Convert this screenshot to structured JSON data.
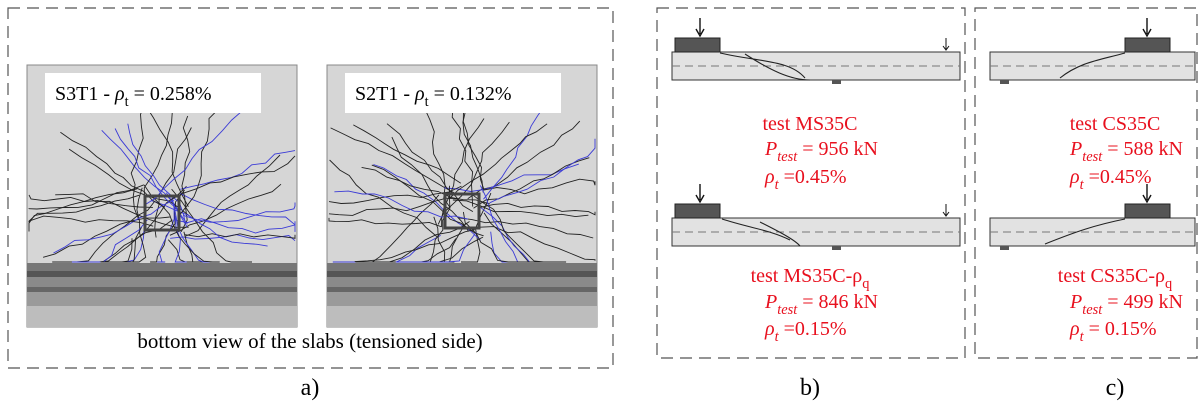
{
  "panel_a": {
    "photos": [
      {
        "label": {
          "text": "S3T1 - ",
          "symbol": "ρ",
          "sub": "t",
          "rest": " = 0.258%"
        }
      },
      {
        "label": {
          "text": "S2T1 - ",
          "symbol": "ρ",
          "sub": "t",
          "rest": " = 0.132%"
        }
      }
    ],
    "caption": "bottom view of the slabs (tensioned side)",
    "tag": "a)"
  },
  "panel_b": {
    "tests": [
      {
        "name": {
          "text": "test MS35C"
        },
        "load": {
          "symbol": "P",
          "sub": "test",
          "rest": " = 956 kN"
        },
        "ratio": {
          "symbol": "ρ",
          "sub": "t",
          "rest": " =0.45%"
        }
      },
      {
        "name": {
          "text": "test MS35C-ρ",
          "sub": "q"
        },
        "load": {
          "symbol": "P",
          "sub": "test",
          "rest": " = 846 kN"
        },
        "ratio": {
          "symbol": "ρ",
          "sub": "t",
          "rest": " =0.15%"
        }
      }
    ],
    "tag": "b)"
  },
  "panel_c": {
    "tests": [
      {
        "name": {
          "text": "test CS35C"
        },
        "load": {
          "symbol": "P",
          "sub": "test",
          "rest": " = 588 kN"
        },
        "ratio": {
          "symbol": "ρ",
          "sub": "t",
          "rest": " =0.45%"
        }
      },
      {
        "name": {
          "text": "test CS35C-ρ",
          "sub": "q"
        },
        "load": {
          "symbol": "P",
          "sub": "test",
          "rest": " = 499 kN"
        },
        "ratio": {
          "symbol": "ρ",
          "sub": "t",
          "rest": " = 0.15%"
        }
      }
    ],
    "tag": "c)"
  }
}
